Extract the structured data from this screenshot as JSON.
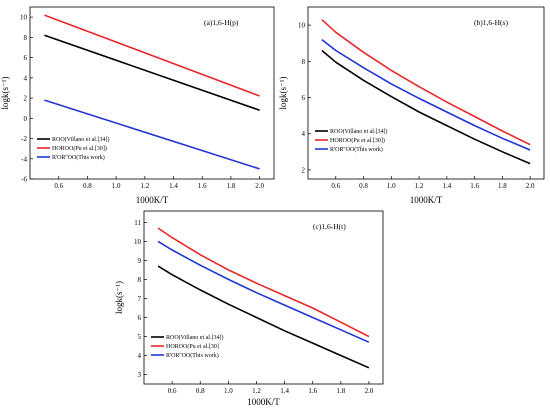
{
  "chart_data": [
    {
      "type": "line",
      "panel_title": "(a)1,6-H(p)",
      "xlabel": "1000K/T",
      "ylabel": "logk(s⁻¹)",
      "xlim": [
        0.4,
        2.1
      ],
      "ylim": [
        -6,
        11
      ],
      "xticks": [
        "0.6",
        "0.8",
        "1.0",
        "1.2",
        "1.4",
        "1.6",
        "1.8",
        "2.0"
      ],
      "yticks": [
        "-6",
        "-4",
        "-2",
        "0",
        "2",
        "4",
        "6",
        "8",
        "10"
      ],
      "legend_position": "bottom-left",
      "series": [
        {
          "name": "ROO(Villano et al.[34])",
          "color": "#000000",
          "x": [
            0.5,
            2.0
          ],
          "y": [
            8.2,
            0.8
          ]
        },
        {
          "name": "HOROO(Pu et al.[30])",
          "color": "#e8282a",
          "x": [
            0.5,
            2.0
          ],
          "y": [
            10.2,
            2.2
          ]
        },
        {
          "name": "R'OR''OO(This work)",
          "color": "#2035d6",
          "x": [
            0.5,
            2.0
          ],
          "y": [
            1.8,
            -5.0
          ]
        }
      ]
    },
    {
      "type": "line",
      "panel_title": "(b)1,6-H(s)",
      "xlabel": "1000K/T",
      "ylabel": "logk(s⁻¹)",
      "xlim": [
        0.4,
        2.1
      ],
      "ylim": [
        1.5,
        11
      ],
      "xticks": [
        "0.6",
        "0.8",
        "1.0",
        "1.2",
        "1.4",
        "1.6",
        "1.8",
        "2.0"
      ],
      "yticks": [
        "2",
        "4",
        "6",
        "8",
        "10"
      ],
      "legend_position": "bottom-left",
      "series": [
        {
          "name": "ROO(Villano et al.[34])",
          "color": "#000000",
          "x": [
            0.5,
            0.6,
            0.8,
            1.0,
            1.2,
            1.4,
            1.6,
            1.8,
            2.0
          ],
          "y": [
            8.6,
            7.95,
            6.95,
            6.05,
            5.2,
            4.45,
            3.7,
            3.0,
            2.35
          ]
        },
        {
          "name": "HOROO(Pu et al.[30])",
          "color": "#e8282a",
          "x": [
            0.5,
            0.6,
            0.8,
            1.0,
            1.2,
            1.4,
            1.6,
            1.8,
            2.0
          ],
          "y": [
            10.3,
            9.6,
            8.5,
            7.5,
            6.6,
            5.75,
            4.95,
            4.15,
            3.4
          ]
        },
        {
          "name": "R'OR''OO(This work)",
          "color": "#2035d6",
          "x": [
            0.5,
            0.6,
            0.8,
            1.0,
            1.2,
            1.4,
            1.6,
            1.8,
            2.0
          ],
          "y": [
            9.2,
            8.6,
            7.65,
            6.75,
            5.95,
            5.2,
            4.45,
            3.75,
            3.1
          ]
        }
      ]
    },
    {
      "type": "line",
      "panel_title": "(c)1,6-H(t)",
      "xlabel": "1000K/T",
      "ylabel": "logk(s⁻¹)",
      "xlim": [
        0.4,
        2.1
      ],
      "ylim": [
        2.5,
        11.6
      ],
      "xticks": [
        "0.6",
        "0.8",
        "1.0",
        "1.2",
        "1.4",
        "1.6",
        "1.8",
        "2.0"
      ],
      "yticks": [
        "3",
        "4",
        "5",
        "6",
        "7",
        "8",
        "9",
        "10",
        "11"
      ],
      "legend_position": "bottom-left",
      "series": [
        {
          "name": "ROO(Villano et al.[34])",
          "color": "#000000",
          "x": [
            0.5,
            0.6,
            0.8,
            1.0,
            1.2,
            1.4,
            1.6,
            1.8,
            2.0
          ],
          "y": [
            8.7,
            8.25,
            7.45,
            6.7,
            6.0,
            5.3,
            4.65,
            4.0,
            3.35
          ]
        },
        {
          "name": "HOROO(Pu et al.[30]",
          "color": "#e8282a",
          "x": [
            0.5,
            0.6,
            0.8,
            1.0,
            1.2,
            1.4,
            1.6,
            1.8,
            2.0
          ],
          "y": [
            10.7,
            10.2,
            9.3,
            8.5,
            7.8,
            7.15,
            6.5,
            5.75,
            5.0
          ]
        },
        {
          "name": "R'OR''OO(This work)",
          "color": "#2035d6",
          "x": [
            0.5,
            0.6,
            0.8,
            1.0,
            1.2,
            1.4,
            1.6,
            1.8,
            2.0
          ],
          "y": [
            10.0,
            9.55,
            8.75,
            8.0,
            7.3,
            6.65,
            6.0,
            5.35,
            4.7
          ]
        }
      ]
    }
  ]
}
